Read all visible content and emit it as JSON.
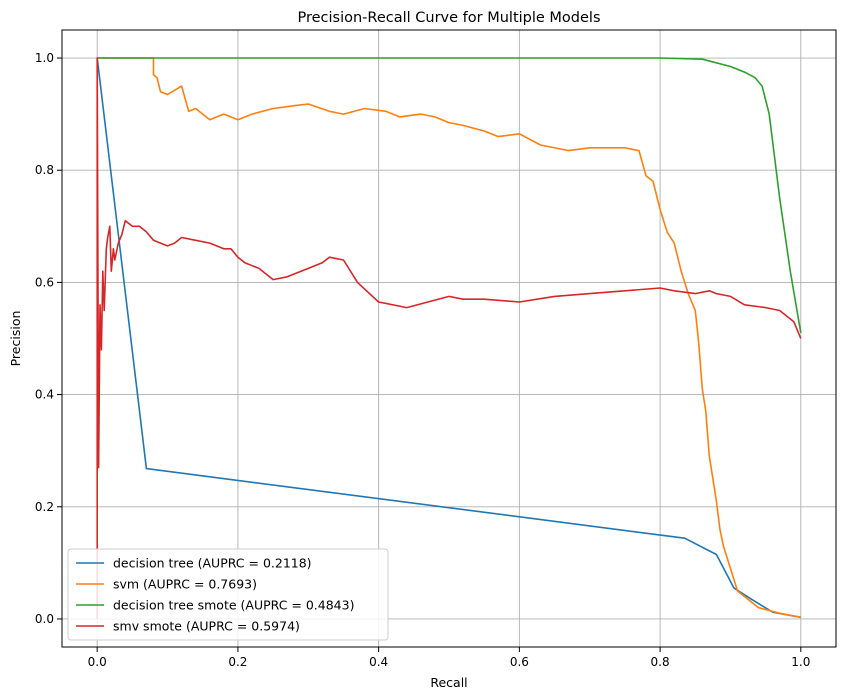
{
  "chart_data": {
    "type": "line",
    "title": "Precision-Recall Curve for Multiple Models",
    "xlabel": "Recall",
    "ylabel": "Precision",
    "xlim": [
      -0.05,
      1.05
    ],
    "ylim": [
      -0.05,
      1.05
    ],
    "xticks": [
      "0.0",
      "0.2",
      "0.4",
      "0.6",
      "0.8",
      "1.0"
    ],
    "yticks": [
      "0.0",
      "0.2",
      "0.4",
      "0.6",
      "0.8",
      "1.0"
    ],
    "grid": true,
    "legend_position": "lower-left",
    "series": [
      {
        "name": "decision tree (AUPRC = 0.2118)",
        "color": "#1f77b4",
        "x": [
          0.0,
          0.07,
          0.835,
          0.88,
          0.905,
          0.93,
          0.96,
          1.0
        ],
        "y": [
          1.0,
          0.268,
          0.144,
          0.115,
          0.055,
          0.035,
          0.012,
          0.003
        ]
      },
      {
        "name": "svm (AUPRC = 0.7693)",
        "color": "#ff7f0e",
        "x": [
          0.0,
          0.08,
          0.08,
          0.085,
          0.09,
          0.1,
          0.12,
          0.13,
          0.14,
          0.15,
          0.16,
          0.17,
          0.18,
          0.2,
          0.22,
          0.25,
          0.28,
          0.3,
          0.33,
          0.35,
          0.38,
          0.41,
          0.43,
          0.46,
          0.48,
          0.5,
          0.52,
          0.55,
          0.57,
          0.6,
          0.63,
          0.67,
          0.7,
          0.75,
          0.77,
          0.78,
          0.79,
          0.8,
          0.81,
          0.82,
          0.83,
          0.84,
          0.85,
          0.855,
          0.86,
          0.865,
          0.87,
          0.875,
          0.88,
          0.885,
          0.89,
          0.9,
          0.91,
          0.92,
          0.94,
          0.97,
          1.0
        ],
        "y": [
          1.0,
          1.0,
          0.97,
          0.965,
          0.94,
          0.935,
          0.95,
          0.905,
          0.91,
          0.9,
          0.89,
          0.895,
          0.9,
          0.89,
          0.9,
          0.91,
          0.915,
          0.918,
          0.905,
          0.9,
          0.91,
          0.905,
          0.895,
          0.9,
          0.895,
          0.885,
          0.88,
          0.87,
          0.86,
          0.865,
          0.845,
          0.835,
          0.84,
          0.84,
          0.835,
          0.79,
          0.78,
          0.73,
          0.69,
          0.67,
          0.62,
          0.58,
          0.55,
          0.49,
          0.41,
          0.37,
          0.29,
          0.25,
          0.21,
          0.16,
          0.13,
          0.09,
          0.05,
          0.04,
          0.02,
          0.01,
          0.003
        ]
      },
      {
        "name": "decision tree smote (AUPRC = 0.4843)",
        "color": "#2ca02c",
        "x": [
          0.0,
          0.01,
          0.8,
          0.86,
          0.9,
          0.92,
          0.935,
          0.945,
          0.955,
          0.97,
          0.985,
          1.0
        ],
        "y": [
          1.0,
          1.0,
          1.0,
          0.998,
          0.985,
          0.975,
          0.965,
          0.95,
          0.9,
          0.75,
          0.62,
          0.51
        ]
      },
      {
        "name": "smv smote (AUPRC = 0.5974)",
        "color": "#d62728",
        "x": [
          0.0,
          0.0,
          0.002,
          0.004,
          0.006,
          0.008,
          0.01,
          0.013,
          0.015,
          0.018,
          0.02,
          0.023,
          0.025,
          0.03,
          0.035,
          0.04,
          0.045,
          0.05,
          0.06,
          0.07,
          0.08,
          0.09,
          0.1,
          0.11,
          0.12,
          0.14,
          0.16,
          0.18,
          0.19,
          0.2,
          0.21,
          0.23,
          0.25,
          0.27,
          0.3,
          0.32,
          0.33,
          0.35,
          0.37,
          0.4,
          0.44,
          0.47,
          0.5,
          0.52,
          0.55,
          0.6,
          0.65,
          0.7,
          0.75,
          0.8,
          0.82,
          0.85,
          0.87,
          0.88,
          0.9,
          0.92,
          0.95,
          0.97,
          0.99,
          1.0
        ],
        "y": [
          0.0,
          1.0,
          0.27,
          0.56,
          0.48,
          0.62,
          0.55,
          0.66,
          0.68,
          0.7,
          0.62,
          0.66,
          0.64,
          0.67,
          0.685,
          0.71,
          0.705,
          0.7,
          0.7,
          0.69,
          0.675,
          0.67,
          0.665,
          0.67,
          0.68,
          0.675,
          0.67,
          0.66,
          0.66,
          0.645,
          0.635,
          0.625,
          0.605,
          0.61,
          0.625,
          0.635,
          0.645,
          0.64,
          0.6,
          0.565,
          0.555,
          0.565,
          0.575,
          0.57,
          0.57,
          0.565,
          0.575,
          0.58,
          0.585,
          0.59,
          0.585,
          0.58,
          0.585,
          0.58,
          0.575,
          0.56,
          0.555,
          0.55,
          0.53,
          0.5
        ]
      }
    ]
  }
}
